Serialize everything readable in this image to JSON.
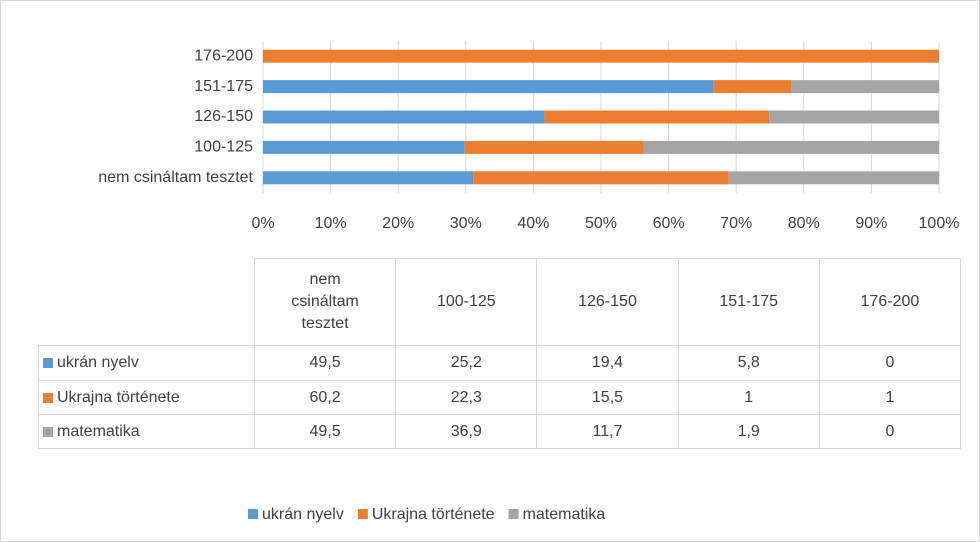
{
  "chart_data": {
    "type": "bar",
    "orientation": "horizontal",
    "stacking": "percent",
    "categories": [
      "nem csináltam tesztet",
      "100-125",
      "126-150",
      "151-175",
      "176-200"
    ],
    "series": [
      {
        "name": "ukrán nyelv",
        "color": "#5b9bd5",
        "values": [
          49.5,
          25.2,
          19.4,
          5.8,
          0
        ],
        "value_labels": [
          "49,5",
          "25,2",
          "19,4",
          "5,8",
          "0"
        ]
      },
      {
        "name": "Ukrajna története",
        "color": "#ed7d31",
        "values": [
          60.2,
          22.3,
          15.5,
          1,
          1
        ],
        "value_labels": [
          "60,2",
          "22,3",
          "15,5",
          "1",
          "1"
        ]
      },
      {
        "name": "matematika",
        "color": "#a5a5a5",
        "values": [
          49.5,
          36.9,
          11.7,
          1.9,
          0
        ],
        "value_labels": [
          "49,5",
          "36,9",
          "11,7",
          "1,9",
          "0"
        ]
      }
    ],
    "xlim": [
      0,
      100
    ],
    "xticks": [
      {
        "value": 0,
        "label": "0%"
      },
      {
        "value": 10,
        "label": "10%"
      },
      {
        "value": 20,
        "label": "20%"
      },
      {
        "value": 30,
        "label": "30%"
      },
      {
        "value": 40,
        "label": "40%"
      },
      {
        "value": 50,
        "label": "50%"
      },
      {
        "value": 60,
        "label": "60%"
      },
      {
        "value": 70,
        "label": "70%"
      },
      {
        "value": 80,
        "label": "80%"
      },
      {
        "value": 90,
        "label": "90%"
      },
      {
        "value": 100,
        "label": "100%"
      }
    ],
    "grid": true,
    "data_table": true,
    "legend": "bottom"
  }
}
